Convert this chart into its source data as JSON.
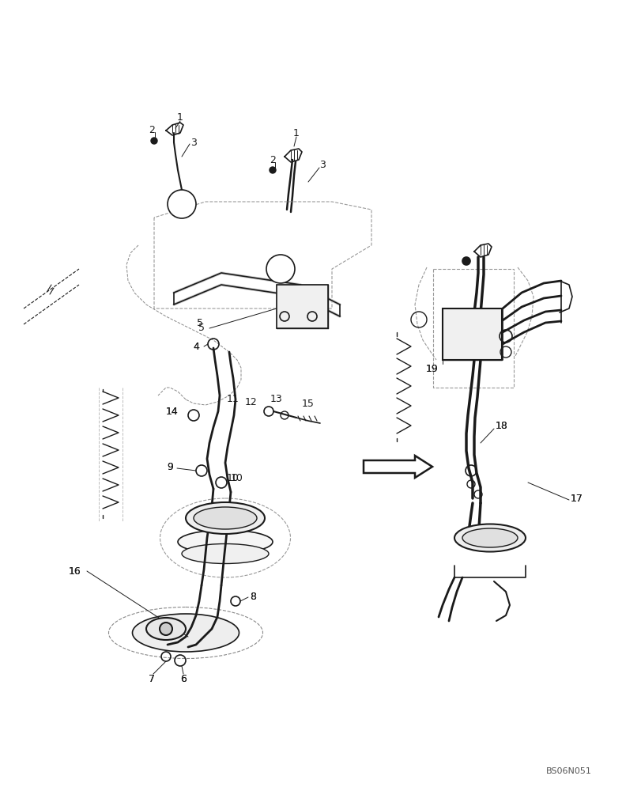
{
  "background_color": "#ffffff",
  "figure_width": 8.12,
  "figure_height": 10.0,
  "dpi": 100,
  "watermark": "BS06N051",
  "line_color": "#1a1a1a",
  "lw": 1.0,
  "tlw": 2.0
}
